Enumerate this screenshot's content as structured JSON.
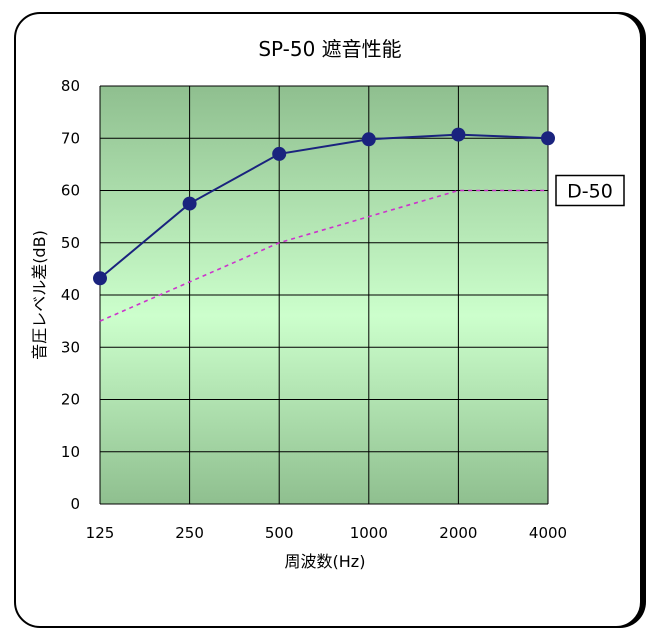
{
  "chart_data": {
    "type": "line",
    "title": "SP-50 遮音性能",
    "xlabel": "周波数(Hz)",
    "ylabel": "音圧レベル差(dB)",
    "categories": [
      "125",
      "250",
      "500",
      "1000",
      "2000",
      "4000"
    ],
    "ylim": [
      0,
      80
    ],
    "yticks": [
      "0",
      "10",
      "20",
      "30",
      "40",
      "50",
      "60",
      "70",
      "80"
    ],
    "grid": true,
    "series": [
      {
        "values": [
          43.2,
          57.5,
          67,
          69.8,
          70.7,
          70
        ],
        "style": "solid-markers",
        "color": "#1a237e"
      },
      {
        "name": "D-50",
        "values": [
          35,
          42.5,
          50,
          55,
          60,
          60
        ],
        "style": "dashed",
        "color": "#cc33cc"
      }
    ],
    "colors": {
      "plot_top": "#8fbf8f",
      "plot_bottom": "#ccffcc"
    }
  }
}
